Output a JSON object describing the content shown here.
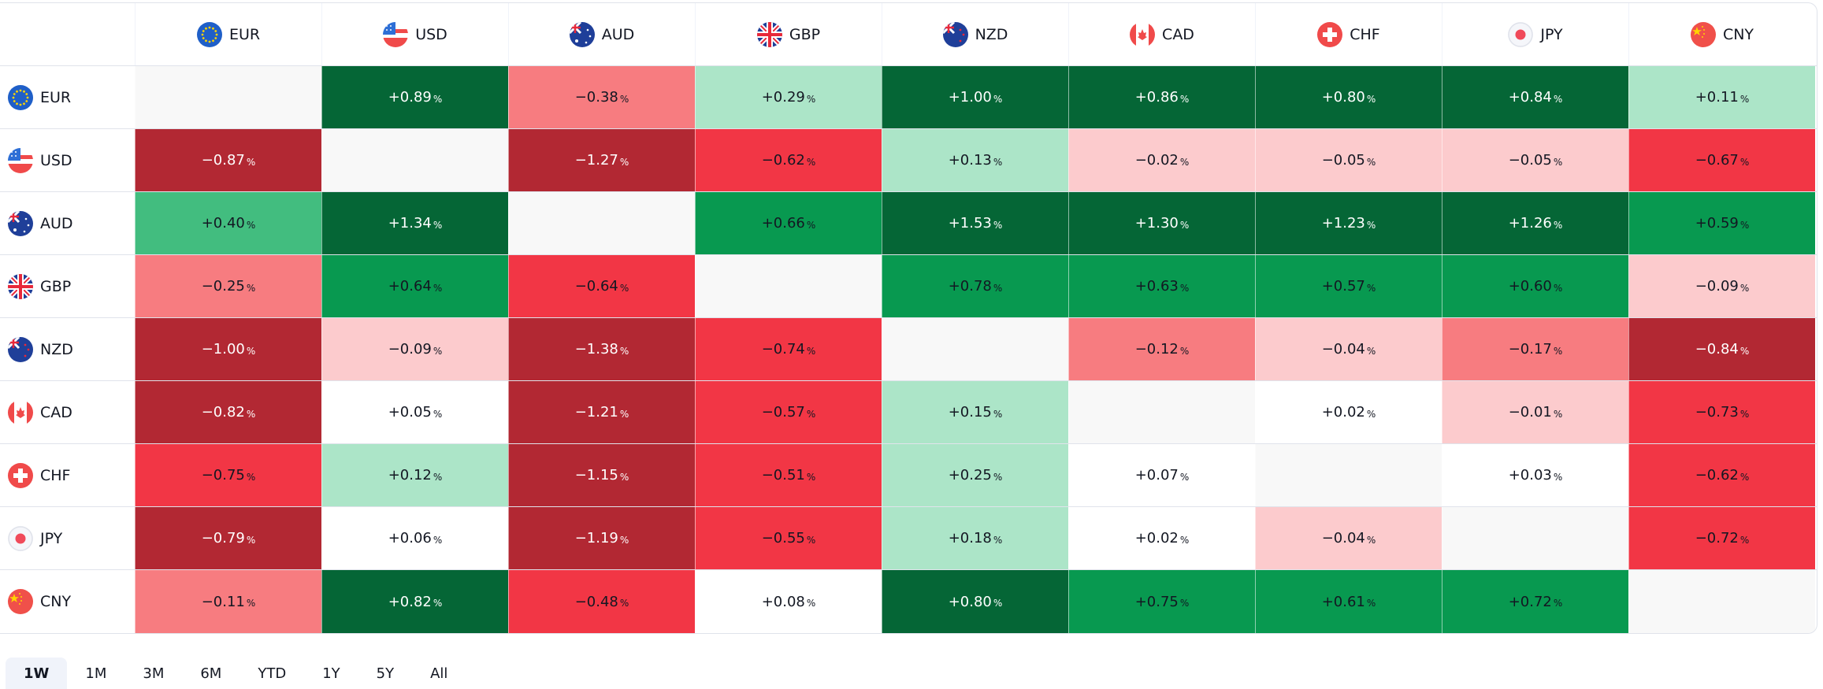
{
  "currencies": [
    "EUR",
    "USD",
    "AUD",
    "GBP",
    "NZD",
    "CAD",
    "CHF",
    "JPY",
    "CNY"
  ],
  "unit": "%",
  "colors": {
    "dark_green": "#056636",
    "green": "#089950",
    "mid_green": "#42bd7f",
    "light_green": "#ace5c8",
    "neutral": "#ffffff",
    "diagonal": "#f8f8f8",
    "light_red": "#fccbcd",
    "mid_red": "#f77c80",
    "red": "#f23645",
    "dark_red": "#b22833"
  },
  "matrix": [
    [
      null,
      "+0.89",
      "−0.38",
      "+0.29",
      "+1.00",
      "+0.86",
      "+0.80",
      "+0.84",
      "+0.11"
    ],
    [
      "−0.87",
      null,
      "−1.27",
      "−0.62",
      "+0.13",
      "−0.02",
      "−0.05",
      "−0.05",
      "−0.67"
    ],
    [
      "+0.40",
      "+1.34",
      null,
      "+0.66",
      "+1.53",
      "+1.30",
      "+1.23",
      "+1.26",
      "+0.59"
    ],
    [
      "−0.25",
      "+0.64",
      "−0.64",
      null,
      "+0.78",
      "+0.63",
      "+0.57",
      "+0.60",
      "−0.09"
    ],
    [
      "−1.00",
      "−0.09",
      "−1.38",
      "−0.74",
      null,
      "−0.12",
      "−0.04",
      "−0.17",
      "−0.84"
    ],
    [
      "−0.82",
      "+0.05",
      "−1.21",
      "−0.57",
      "+0.15",
      null,
      "+0.02",
      "−0.01",
      "−0.73"
    ],
    [
      "−0.75",
      "+0.12",
      "−1.15",
      "−0.51",
      "+0.25",
      "+0.07",
      null,
      "+0.03",
      "−0.62"
    ],
    [
      "−0.79",
      "+0.06",
      "−1.19",
      "−0.55",
      "+0.18",
      "+0.02",
      "−0.04",
      null,
      "−0.72"
    ],
    [
      "−0.11",
      "+0.82",
      "−0.48",
      "+0.08",
      "+0.80",
      "+0.75",
      "+0.61",
      "+0.72",
      null
    ]
  ],
  "tabs": [
    {
      "label": "1W",
      "active": true
    },
    {
      "label": "1M"
    },
    {
      "label": "3M"
    },
    {
      "label": "6M"
    },
    {
      "label": "YTD"
    },
    {
      "label": "1Y"
    },
    {
      "label": "5Y"
    },
    {
      "label": "All"
    }
  ]
}
